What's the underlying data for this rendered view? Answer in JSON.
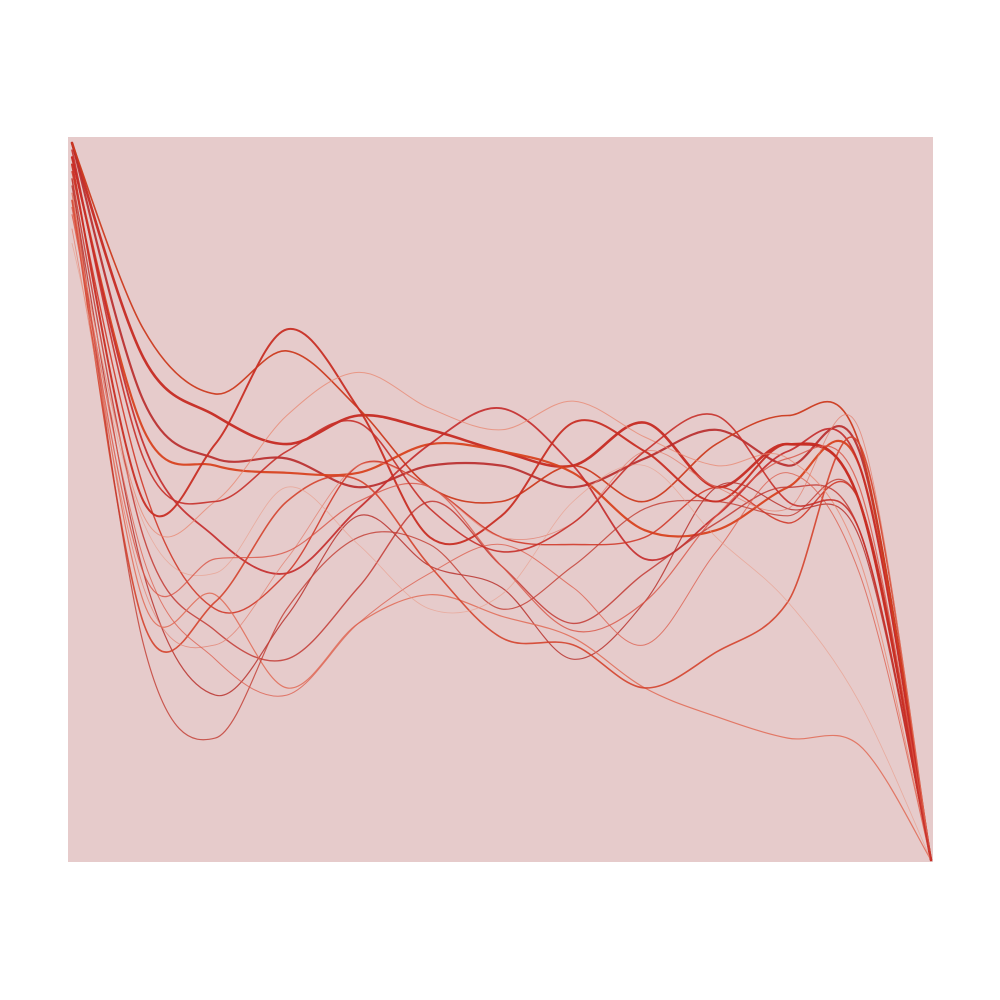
{
  "artwork": {
    "kind": "generative line art",
    "background_color": "#ffffff",
    "panel_color": "#e6cbcb",
    "curves": [
      {
        "color": "#c62a22",
        "opacity": 0.95,
        "weight": 2.6,
        "values": [
          1.0,
          0.7,
          0.62,
          0.58,
          0.62,
          0.6,
          0.57,
          0.55,
          0.61,
          0.52,
          0.58,
          0.5,
          0.0
        ]
      },
      {
        "color": "#b82a2a",
        "opacity": 0.9,
        "weight": 2.2,
        "values": [
          1.0,
          0.64,
          0.56,
          0.56,
          0.52,
          0.55,
          0.55,
          0.52,
          0.56,
          0.6,
          0.55,
          0.57,
          0.0
        ]
      },
      {
        "color": "#cc3a1d",
        "opacity": 0.95,
        "weight": 1.6,
        "values": [
          1.0,
          0.74,
          0.65,
          0.71,
          0.63,
          0.52,
          0.5,
          0.55,
          0.5,
          0.58,
          0.62,
          0.58,
          0.0
        ]
      },
      {
        "color": "#d8421f",
        "opacity": 0.95,
        "weight": 2.2,
        "values": [
          0.98,
          0.6,
          0.55,
          0.54,
          0.54,
          0.58,
          0.57,
          0.54,
          0.46,
          0.46,
          0.52,
          0.55,
          0.0
        ]
      },
      {
        "color": "#c42a2a",
        "opacity": 0.9,
        "weight": 1.8,
        "values": [
          0.98,
          0.58,
          0.45,
          0.4,
          0.49,
          0.58,
          0.63,
          0.55,
          0.42,
          0.48,
          0.57,
          0.55,
          0.0
        ]
      },
      {
        "color": "#d03a2a",
        "opacity": 0.9,
        "weight": 1.4,
        "values": [
          0.96,
          0.52,
          0.35,
          0.4,
          0.55,
          0.52,
          0.45,
          0.44,
          0.45,
          0.52,
          0.47,
          0.5,
          0.0
        ]
      },
      {
        "color": "#c23a34",
        "opacity": 0.85,
        "weight": 1.4,
        "values": [
          0.95,
          0.45,
          0.32,
          0.28,
          0.38,
          0.5,
          0.41,
          0.33,
          0.4,
          0.47,
          0.52,
          0.46,
          0.0
        ]
      },
      {
        "color": "#b8322e",
        "opacity": 0.85,
        "weight": 1.2,
        "values": [
          0.94,
          0.4,
          0.23,
          0.34,
          0.48,
          0.41,
          0.38,
          0.28,
          0.36,
          0.52,
          0.49,
          0.45,
          0.0
        ]
      },
      {
        "color": "#e06a55",
        "opacity": 0.85,
        "weight": 1.2,
        "values": [
          0.93,
          0.36,
          0.37,
          0.24,
          0.33,
          0.37,
          0.34,
          0.31,
          0.24,
          0.2,
          0.17,
          0.16,
          0.0
        ]
      },
      {
        "color": "#d4422c",
        "opacity": 0.9,
        "weight": 1.6,
        "values": [
          0.92,
          0.33,
          0.36,
          0.5,
          0.53,
          0.41,
          0.31,
          0.3,
          0.24,
          0.29,
          0.36,
          0.58,
          0.0
        ]
      },
      {
        "color": "#c23a30",
        "opacity": 0.8,
        "weight": 1.2,
        "values": [
          0.95,
          0.3,
          0.17,
          0.35,
          0.45,
          0.44,
          0.35,
          0.41,
          0.49,
          0.5,
          0.48,
          0.5,
          0.0
        ]
      },
      {
        "color": "#c82e24",
        "opacity": 0.95,
        "weight": 2.0,
        "values": [
          0.97,
          0.5,
          0.58,
          0.74,
          0.63,
          0.45,
          0.48,
          0.61,
          0.57,
          0.5,
          0.58,
          0.5,
          0.0
        ]
      },
      {
        "color": "#e8856f",
        "opacity": 0.75,
        "weight": 1.0,
        "values": [
          0.9,
          0.48,
          0.5,
          0.62,
          0.68,
          0.63,
          0.6,
          0.64,
          0.59,
          0.55,
          0.56,
          0.42,
          0.0
        ]
      },
      {
        "color": "#e37865",
        "opacity": 0.7,
        "weight": 0.9,
        "values": [
          0.88,
          0.38,
          0.3,
          0.42,
          0.55,
          0.52,
          0.45,
          0.47,
          0.57,
          0.52,
          0.49,
          0.6,
          0.0
        ]
      },
      {
        "color": "#dc5a48",
        "opacity": 0.75,
        "weight": 1.0,
        "values": [
          0.9,
          0.42,
          0.28,
          0.23,
          0.33,
          0.4,
          0.44,
          0.38,
          0.3,
          0.43,
          0.54,
          0.4,
          0.0
        ]
      },
      {
        "color": "#ea9a86",
        "opacity": 0.65,
        "weight": 0.8,
        "values": [
          0.86,
          0.47,
          0.4,
          0.52,
          0.44,
          0.35,
          0.37,
          0.5,
          0.55,
          0.45,
          0.36,
          0.22,
          0.0
        ]
      },
      {
        "color": "#d95344",
        "opacity": 0.8,
        "weight": 1.2,
        "values": [
          0.91,
          0.4,
          0.42,
          0.43,
          0.5,
          0.52,
          0.41,
          0.32,
          0.36,
          0.48,
          0.56,
          0.52,
          0.0
        ]
      },
      {
        "color": "#c7302a",
        "opacity": 0.9,
        "weight": 1.6,
        "values": [
          0.99,
          0.56,
          0.5,
          0.57,
          0.61,
          0.49,
          0.43,
          0.47,
          0.57,
          0.62,
          0.5,
          0.46,
          0.0
        ]
      }
    ]
  }
}
